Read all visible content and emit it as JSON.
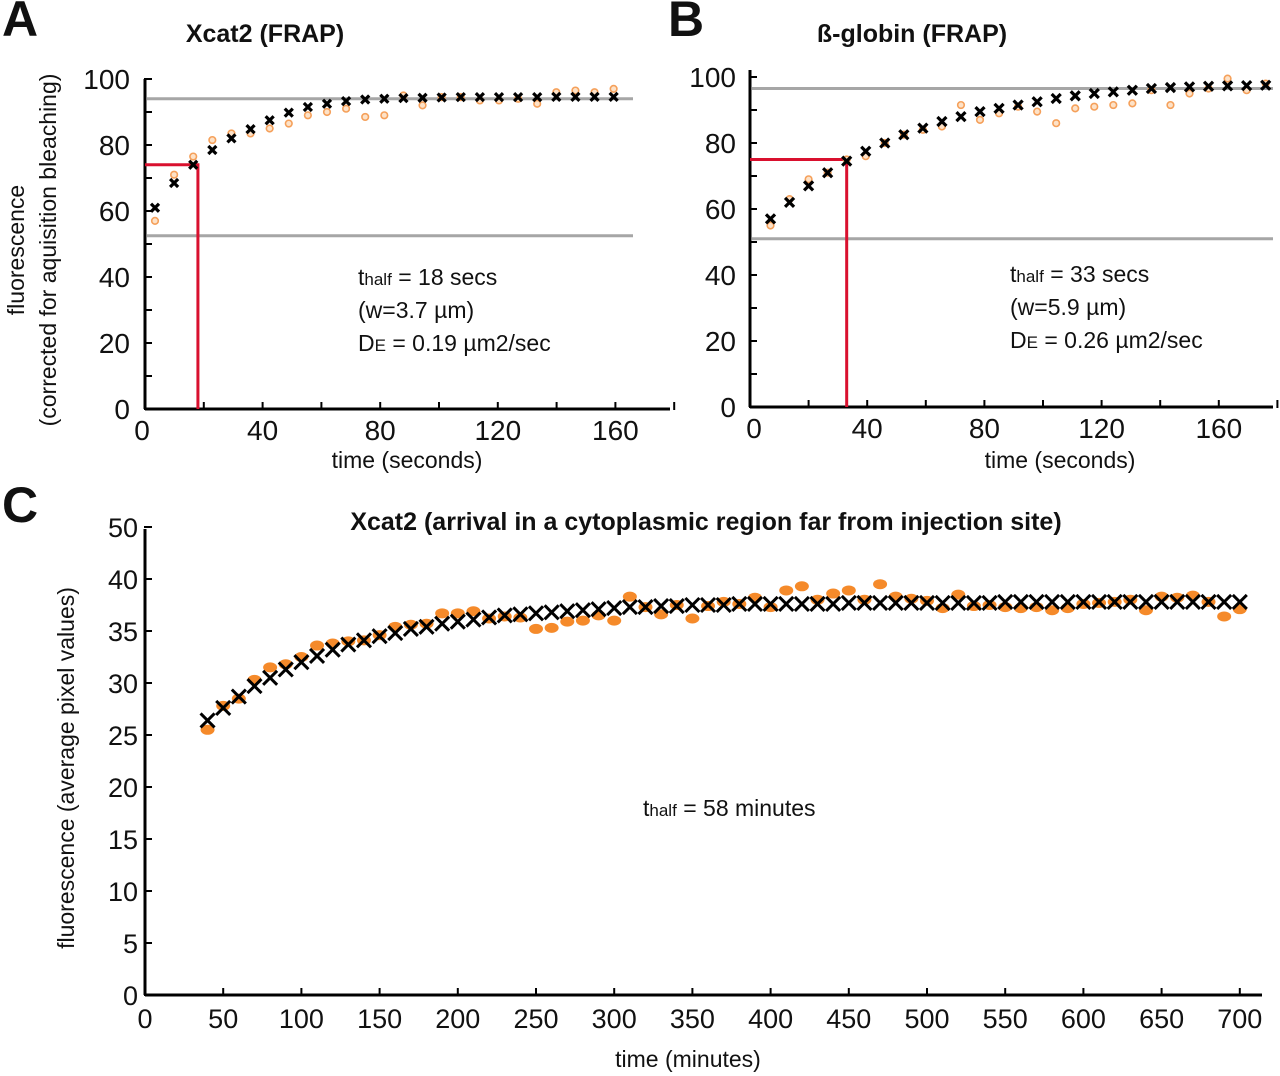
{
  "chart_data": [
    {
      "panel": "A",
      "type": "scatter",
      "title": "Xcat2 (FRAP)",
      "xlabel": "time (seconds)",
      "ylabel_line1": "fluorescence",
      "ylabel_line2": "(corrected for aquisition bleaching)",
      "xlim": [
        0,
        180
      ],
      "ylim": [
        0,
        100
      ],
      "xticks": [
        "0",
        "40",
        "80",
        "120",
        "160"
      ],
      "yticks": [
        "0",
        "20",
        "40",
        "60",
        "80",
        "100"
      ],
      "x": [
        3.4,
        9.9,
        16.4,
        22.9,
        29.4,
        35.9,
        42.4,
        48.9,
        55.4,
        61.9,
        68.4,
        74.9,
        81.4,
        87.9,
        94.4,
        100.9,
        107.4,
        113.9,
        120.4,
        126.9,
        133.4,
        139.9,
        146.4,
        152.9,
        159.4
      ],
      "series": [
        {
          "marker": "x",
          "color": "#000000",
          "values": [
            61,
            68.5,
            74,
            78.5,
            82,
            84.8,
            87.5,
            89.8,
            91.5,
            92.5,
            93.3,
            93.8,
            94,
            94.2,
            94.3,
            94.4,
            94.5,
            94.5,
            94.5,
            94.5,
            94.5,
            94.6,
            94.6,
            94.6,
            94.6
          ]
        },
        {
          "marker": "circle",
          "color": "#f5a05a",
          "values": [
            57,
            71,
            76.5,
            81.5,
            83.5,
            83.5,
            85,
            86.5,
            89,
            90,
            91,
            88.5,
            89,
            95,
            92,
            94.5,
            94.5,
            93.5,
            93.5,
            94,
            92.5,
            96,
            96.5,
            96,
            97
          ]
        }
      ],
      "hlines": [
        94,
        52.5
      ],
      "hline_color": "#a6a6a6",
      "half_marker": {
        "t": 18,
        "y": 74,
        "color": "#d9102e"
      },
      "annotation": {
        "t": "t",
        "sub": "half",
        "thalf_rest": " = 18 secs",
        "w": "(w=3.7 µm)",
        "d": "D",
        "dsub": "E",
        "d_rest": " = 0.19  µm2/sec"
      }
    },
    {
      "panel": "B",
      "type": "scatter",
      "title": "ß-globin (FRAP)",
      "xlabel": "time (seconds)",
      "xlim": [
        0,
        180
      ],
      "ylim": [
        0,
        100
      ],
      "xticks": [
        "0",
        "40",
        "80",
        "120",
        "160"
      ],
      "yticks": [
        "0",
        "20",
        "40",
        "60",
        "80",
        "100"
      ],
      "x": [
        7,
        13.5,
        20,
        26.5,
        33,
        39.5,
        46,
        52.5,
        59,
        65.5,
        72,
        78.5,
        85,
        91.5,
        98,
        104.5,
        111,
        117.5,
        124,
        130.5,
        137,
        143.5,
        150,
        156.5,
        163,
        169.5,
        176
      ],
      "series": [
        {
          "marker": "x",
          "color": "#000000",
          "values": [
            57,
            62,
            67,
            71,
            74.5,
            77.5,
            80,
            82.5,
            84.5,
            86.5,
            88,
            89.5,
            90.5,
            91.5,
            92.5,
            93.5,
            94.3,
            95,
            95.5,
            96,
            96.5,
            96.8,
            97,
            97.2,
            97.3,
            97.4,
            97.5
          ]
        },
        {
          "marker": "circle",
          "color": "#f5a05a",
          "values": [
            55,
            63,
            69,
            71,
            75,
            76,
            80,
            82.5,
            84,
            85,
            91.5,
            87,
            89,
            91,
            89.5,
            86,
            90.5,
            91,
            91.5,
            92,
            96,
            91.5,
            95,
            96.5,
            99.5,
            96,
            98
          ]
        }
      ],
      "hlines": [
        96.5,
        51
      ],
      "hline_color": "#a6a6a6",
      "half_marker": {
        "t": 33,
        "y": 75,
        "color": "#d9102e"
      },
      "annotation": {
        "t": "t",
        "sub": "half",
        "thalf_rest": " = 33 secs",
        "w": "(w=5.9 µm)",
        "d": "D",
        "dsub": "E",
        "d_rest": " = 0.26  µm2/sec"
      }
    },
    {
      "panel": "C",
      "type": "scatter",
      "title": "Xcat2 (arrival in a cytoplasmic region far from injection site)",
      "xlabel": "time (minutes)",
      "ylabel": "fluorescence (average pixel values)",
      "xlim": [
        0,
        715
      ],
      "ylim": [
        0,
        45
      ],
      "xticks": [
        "0",
        "50",
        "100",
        "150",
        "200",
        "250",
        "300",
        "350",
        "400",
        "450",
        "500",
        "550",
        "600",
        "650",
        "700"
      ],
      "yticks": [
        "0",
        "5",
        "10",
        "15",
        "20",
        "25",
        "30",
        "35",
        "40",
        "50"
      ],
      "x_start": 40,
      "x_step": 10,
      "series": [
        {
          "marker": "x",
          "color": "#000000",
          "values": [
            26.4,
            27.6,
            28.7,
            29.7,
            30.5,
            31.3,
            32.0,
            32.6,
            33.2,
            33.7,
            34.1,
            34.5,
            34.8,
            35.2,
            35.4,
            35.7,
            35.9,
            36.1,
            36.3,
            36.5,
            36.6,
            36.7,
            36.8,
            36.9,
            37.0,
            37.1,
            37.2,
            37.3,
            37.3,
            37.4,
            37.4,
            37.5,
            37.5,
            37.5,
            37.6,
            37.6,
            37.6,
            37.6,
            37.6,
            37.6,
            37.6,
            37.7,
            37.7,
            37.7,
            37.7,
            37.7,
            37.7,
            37.7,
            37.7,
            37.7,
            37.7,
            37.8,
            37.8,
            37.8,
            37.8,
            37.8,
            37.8,
            37.8,
            37.8,
            37.8,
            37.8,
            37.8,
            37.8,
            37.8,
            37.8,
            37.8,
            37.8
          ]
        },
        {
          "marker": "dot",
          "color": "#f58a2a",
          "values": [
            25.5,
            27.8,
            28.5,
            30.3,
            31.5,
            31.8,
            32.5,
            33.6,
            33.8,
            34.0,
            34.1,
            34.6,
            35.4,
            35.6,
            35.7,
            36.7,
            36.7,
            36.9,
            36.2,
            36.4,
            36.3,
            35.2,
            35.3,
            35.9,
            36.0,
            36.5,
            36.0,
            38.3,
            37.3,
            36.6,
            37.5,
            36.2,
            37.4,
            37.8,
            37.6,
            38.2,
            37.3,
            38.9,
            39.3,
            38.0,
            38.6,
            38.9,
            38.0,
            39.5,
            38.3,
            38.1,
            37.9,
            37.2,
            38.5,
            37.4,
            37.5,
            37.3,
            37.2,
            37.3,
            37.0,
            37.2,
            37.6,
            37.7,
            37.8,
            38.0,
            37.0,
            38.3,
            38.2,
            38.4,
            37.8,
            36.4,
            37.1
          ]
        }
      ],
      "annotation": {
        "t": "t",
        "sub": "half",
        "thalf_rest": " = 58 minutes"
      }
    }
  ]
}
